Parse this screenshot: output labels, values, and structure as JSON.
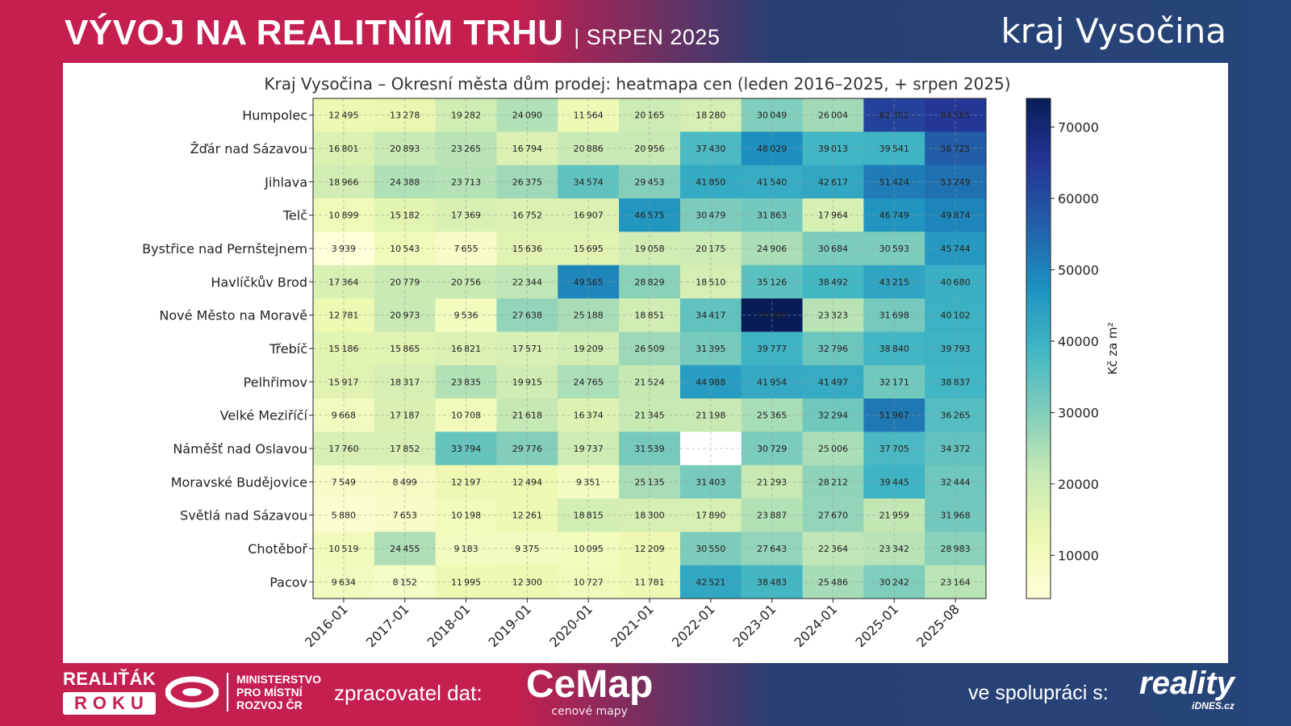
{
  "header": {
    "title": "VÝVOJ NA REALITNÍM TRHU",
    "subtitle": "| SRPEN 2025",
    "region": "kraj Vysočina"
  },
  "footer": {
    "realitak_line1": "REALIŤÁK",
    "realitak_line2": "ROKU",
    "ministry": [
      "MINISTERSTVO",
      "PRO MÍSTNÍ",
      "ROZVOJ ČR"
    ],
    "processor_label": "zpracovatel dat:",
    "cemap": "CeMap",
    "cemap_sub": "cenové mapy",
    "partner_label": "ve spolupráci s:",
    "reality": "reality",
    "reality_sub": "iDNES.cz"
  },
  "colors": {
    "brand_red": "#c41f4e",
    "brand_blue": "#27457a"
  },
  "chart_data": {
    "type": "heatmap",
    "title": "Kraj Vysočina – Okresní města dům prodej: heatmapa cen (leden 2016–2025, + srpen 2025)",
    "colormap": "YlGnBu",
    "colorbar_label": "Kč za m²",
    "colorbar_range": [
      3939,
      74008
    ],
    "colorbar_ticks": [
      10000,
      20000,
      30000,
      40000,
      50000,
      60000,
      70000
    ],
    "grid": true,
    "x": [
      "2016-01",
      "2017-01",
      "2018-01",
      "2019-01",
      "2020-01",
      "2021-01",
      "2022-01",
      "2023-01",
      "2024-01",
      "2025-01",
      "2025-08"
    ],
    "y": [
      "Humpolec",
      "Žďár nad Sázavou",
      "Jihlava",
      "Telč",
      "Bystřice nad Pernštejnem",
      "Havlíčkův Brod",
      "Nové Město na Moravě",
      "Třebíč",
      "Pelhřimov",
      "Velké Meziříčí",
      "Náměšť nad Oslavou",
      "Moravské Budějovice",
      "Světlá nad Sázavou",
      "Chotěboř",
      "Pacov"
    ],
    "values": [
      [
        12495,
        13278,
        19282,
        24090,
        11564,
        20165,
        18280,
        30049,
        26004,
        62352,
        64565
      ],
      [
        16801,
        20893,
        23265,
        16794,
        20886,
        20956,
        37430,
        48029,
        39013,
        39541,
        56725
      ],
      [
        18966,
        24388,
        23713,
        26375,
        34574,
        29453,
        41850,
        41540,
        42617,
        51424,
        53249
      ],
      [
        10899,
        15182,
        17369,
        16752,
        16907,
        46575,
        30479,
        31863,
        17964,
        46749,
        49874
      ],
      [
        3939,
        10543,
        7655,
        15636,
        15695,
        19058,
        20175,
        24906,
        30684,
        30593,
        45744
      ],
      [
        17364,
        20779,
        20756,
        22344,
        49565,
        28829,
        18510,
        35126,
        38492,
        43215,
        40680
      ],
      [
        12781,
        20973,
        9536,
        27638,
        25188,
        18851,
        34417,
        74008,
        23323,
        31698,
        40102
      ],
      [
        15186,
        15865,
        16821,
        17571,
        19209,
        26509,
        31395,
        39777,
        32796,
        38840,
        39793
      ],
      [
        15917,
        18317,
        23835,
        19915,
        24765,
        21524,
        44988,
        41954,
        41497,
        32171,
        38837
      ],
      [
        9668,
        17187,
        10708,
        21618,
        16374,
        21345,
        21198,
        25365,
        32294,
        51967,
        36265
      ],
      [
        17760,
        17852,
        33794,
        29776,
        19737,
        31539,
        null,
        30729,
        25006,
        37705,
        34372
      ],
      [
        7549,
        8499,
        12197,
        12494,
        9351,
        25135,
        31403,
        21293,
        28212,
        39445,
        32444
      ],
      [
        5880,
        7653,
        10198,
        12261,
        18815,
        18300,
        17890,
        23887,
        27670,
        21959,
        31968
      ],
      [
        10519,
        24455,
        9183,
        9375,
        10095,
        12209,
        30550,
        27643,
        22364,
        23342,
        28983
      ],
      [
        9634,
        8152,
        11995,
        12300,
        10727,
        11781,
        42521,
        38483,
        25486,
        30242,
        23164
      ]
    ]
  }
}
